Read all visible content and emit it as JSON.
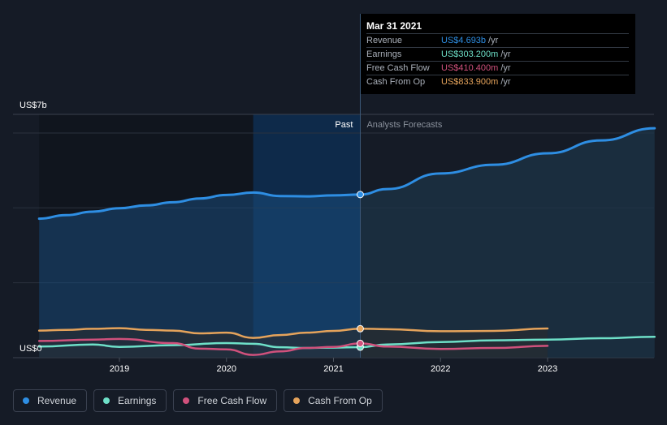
{
  "chart_data": {
    "type": "line",
    "ylabel_top": "US$7b",
    "ylabel_bottom": "US$0",
    "ylim": [
      0,
      7
    ],
    "xlim": [
      2018.25,
      2024.0
    ],
    "x_ticks": [
      2019,
      2020,
      2021,
      2022,
      2023
    ],
    "x_tick_labels": [
      "2019",
      "2020",
      "2021",
      "2022",
      "2023"
    ],
    "divider_x": 2021.25,
    "past_label": "Past",
    "forecast_label": "Analysts Forecasts",
    "series": [
      {
        "name": "Revenue",
        "color": "#2e8ee3",
        "past": [
          [
            2018.25,
            4.0
          ],
          [
            2018.5,
            4.1
          ],
          [
            2018.75,
            4.2
          ],
          [
            2019.0,
            4.3
          ],
          [
            2019.25,
            4.38
          ],
          [
            2019.5,
            4.47
          ],
          [
            2019.75,
            4.58
          ],
          [
            2020.0,
            4.68
          ],
          [
            2020.25,
            4.75
          ],
          [
            2020.5,
            4.65
          ],
          [
            2020.75,
            4.64
          ],
          [
            2021.0,
            4.67
          ],
          [
            2021.25,
            4.693
          ]
        ],
        "forecast": [
          [
            2021.25,
            4.693
          ],
          [
            2021.5,
            4.85
          ],
          [
            2022.0,
            5.3
          ],
          [
            2022.5,
            5.55
          ],
          [
            2023.0,
            5.88
          ],
          [
            2023.5,
            6.25
          ],
          [
            2024.0,
            6.6
          ]
        ]
      },
      {
        "name": "Earnings",
        "color": "#6ee0c8",
        "past": [
          [
            2018.25,
            0.32
          ],
          [
            2018.75,
            0.38
          ],
          [
            2019.0,
            0.31
          ],
          [
            2019.5,
            0.36
          ],
          [
            2020.0,
            0.42
          ],
          [
            2020.25,
            0.4
          ],
          [
            2020.5,
            0.3
          ],
          [
            2020.75,
            0.28
          ],
          [
            2021.0,
            0.29
          ],
          [
            2021.25,
            0.303
          ]
        ],
        "forecast": [
          [
            2021.25,
            0.303
          ],
          [
            2021.5,
            0.38
          ],
          [
            2022.0,
            0.45
          ],
          [
            2022.5,
            0.5
          ],
          [
            2023.0,
            0.52
          ],
          [
            2023.5,
            0.56
          ],
          [
            2024.0,
            0.6
          ]
        ]
      },
      {
        "name": "Free Cash Flow",
        "color": "#d0517c",
        "past": [
          [
            2018.25,
            0.48
          ],
          [
            2018.75,
            0.52
          ],
          [
            2019.0,
            0.54
          ],
          [
            2019.5,
            0.42
          ],
          [
            2019.75,
            0.26
          ],
          [
            2020.0,
            0.24
          ],
          [
            2020.25,
            0.08
          ],
          [
            2020.5,
            0.18
          ],
          [
            2020.75,
            0.28
          ],
          [
            2021.0,
            0.31
          ],
          [
            2021.25,
            0.41
          ]
        ],
        "forecast": [
          [
            2021.25,
            0.41
          ],
          [
            2021.5,
            0.32
          ],
          [
            2022.0,
            0.25
          ],
          [
            2022.5,
            0.28
          ],
          [
            2023.0,
            0.34
          ]
        ]
      },
      {
        "name": "Cash From Op",
        "color": "#e5a35b",
        "past": [
          [
            2018.25,
            0.78
          ],
          [
            2018.5,
            0.8
          ],
          [
            2018.75,
            0.83
          ],
          [
            2019.0,
            0.85
          ],
          [
            2019.25,
            0.8
          ],
          [
            2019.5,
            0.78
          ],
          [
            2019.75,
            0.7
          ],
          [
            2020.0,
            0.72
          ],
          [
            2020.25,
            0.57
          ],
          [
            2020.5,
            0.65
          ],
          [
            2020.75,
            0.72
          ],
          [
            2021.0,
            0.77
          ],
          [
            2021.25,
            0.834
          ]
        ],
        "forecast": [
          [
            2021.25,
            0.834
          ],
          [
            2021.5,
            0.82
          ],
          [
            2022.0,
            0.76
          ],
          [
            2022.5,
            0.77
          ],
          [
            2023.0,
            0.84
          ]
        ]
      }
    ]
  },
  "tooltip": {
    "date": "Mar 31 2021",
    "rows": [
      {
        "label": "Revenue",
        "value": "US$4.693b",
        "unit": "/yr",
        "color": "#2e8ee3"
      },
      {
        "label": "Earnings",
        "value": "US$303.200m",
        "unit": "/yr",
        "color": "#6ee0c8"
      },
      {
        "label": "Free Cash Flow",
        "value": "US$410.400m",
        "unit": "/yr",
        "color": "#d0517c"
      },
      {
        "label": "Cash From Op",
        "value": "US$833.900m",
        "unit": "/yr",
        "color": "#e5a35b"
      }
    ]
  },
  "legend": [
    {
      "label": "Revenue",
      "color": "#2e8ee3"
    },
    {
      "label": "Earnings",
      "color": "#6ee0c8"
    },
    {
      "label": "Free Cash Flow",
      "color": "#d0517c"
    },
    {
      "label": "Cash From Op",
      "color": "#e5a35b"
    }
  ]
}
